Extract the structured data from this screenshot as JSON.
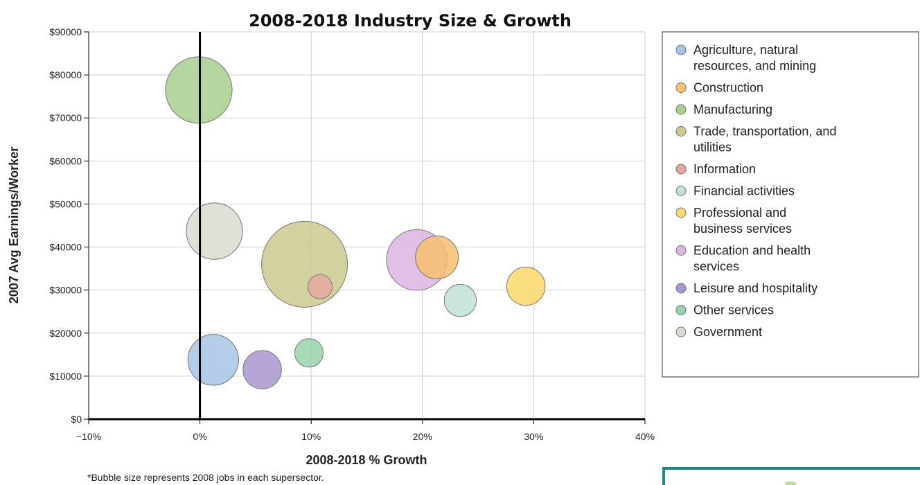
{
  "chart_data": {
    "type": "scatter",
    "title": "2008-2018 Industry Size & Growth",
    "xlabel": "2008-2018 % Growth",
    "ylabel": "2007 Avg Earnings/Worker",
    "xlim": [
      -10,
      40
    ],
    "ylim": [
      0,
      90000
    ],
    "x_ticks": [
      "−10%",
      "0%",
      "10%",
      "20%",
      "30%",
      "40%"
    ],
    "y_ticks": [
      "$0",
      "$10000",
      "$20000",
      "$30000",
      "$40000",
      "$50000",
      "$60000",
      "$70000",
      "$80000",
      "$90000"
    ],
    "grid": true,
    "legend_position": "right",
    "footnote": "*Bubble size represents 2008 jobs in each supersector.",
    "series": [
      {
        "name": "Agriculture, natural resources, and mining",
        "legend_lines": [
          "Agriculture, natural",
          "resources, and mining"
        ],
        "color": "#a7c5e6",
        "x": 1.2,
        "y": 13800,
        "size": 0.35
      },
      {
        "name": "Construction",
        "legend_lines": [
          "Construction"
        ],
        "color": "#f7bf6f",
        "x": 21.3,
        "y": 37600,
        "size": 0.25
      },
      {
        "name": "Manufacturing",
        "legend_lines": [
          "Manufacturing"
        ],
        "color": "#a9cf8e",
        "x": -0.1,
        "y": 76500,
        "size": 0.6
      },
      {
        "name": "Trade, transportation, and utilities",
        "legend_lines": [
          "Trade, transportation, and",
          "utilities"
        ],
        "color": "#cdc98f",
        "x": 9.4,
        "y": 36000,
        "size": 1.0
      },
      {
        "name": "Information",
        "legend_lines": [
          "Information"
        ],
        "color": "#e3a8a0",
        "x": 10.8,
        "y": 30800,
        "size": 0.08
      },
      {
        "name": "Financial activities",
        "legend_lines": [
          "Financial activities"
        ],
        "color": "#bfe0d8",
        "x": 23.4,
        "y": 27600,
        "size": 0.14
      },
      {
        "name": "Professional and business services",
        "legend_lines": [
          "Professional and",
          "business services"
        ],
        "color": "#f9d86a",
        "x": 29.3,
        "y": 30900,
        "size": 0.2
      },
      {
        "name": "Education and health services",
        "legend_lines": [
          "Education and health",
          "services"
        ],
        "color": "#dbb6e0",
        "x": 19.5,
        "y": 37000,
        "size": 0.5
      },
      {
        "name": "Leisure and hospitality",
        "legend_lines": [
          "Leisure and hospitality"
        ],
        "color": "#a996cf",
        "x": 5.6,
        "y": 11500,
        "size": 0.2
      },
      {
        "name": "Other services",
        "legend_lines": [
          "Other services"
        ],
        "color": "#96d3a9",
        "x": 9.8,
        "y": 15400,
        "size": 0.11
      },
      {
        "name": "Government",
        "legend_lines": [
          "Government"
        ],
        "color": "#dadad0",
        "x": 1.3,
        "y": 43700,
        "size": 0.43
      }
    ]
  }
}
